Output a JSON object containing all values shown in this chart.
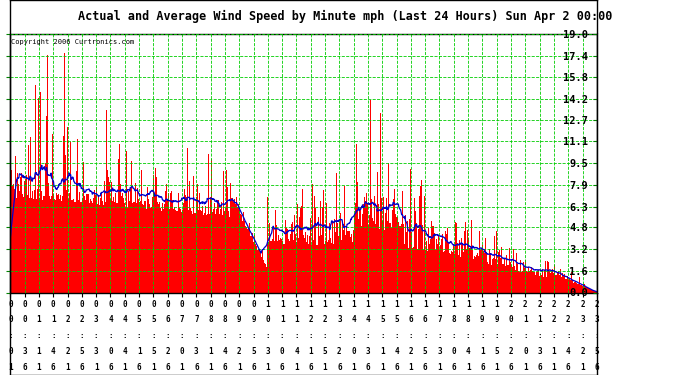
{
  "title": "Actual and Average Wind Speed by Minute mph (Last 24 Hours) Sun Apr 2 00:00",
  "copyright": "Copyright 2006 Curtronics.com",
  "yticks": [
    0.0,
    1.6,
    3.2,
    4.8,
    6.3,
    7.9,
    9.5,
    11.1,
    12.7,
    14.2,
    15.8,
    17.4,
    19.0
  ],
  "ymax": 19.0,
  "ymin": 0.0,
  "bar_color": "#ff0000",
  "line_color": "#0000cc",
  "grid_color": "#00cc00",
  "bg_color": "#ffffff",
  "title_bg": "#c8c8c8",
  "border_color": "#000000",
  "xtick_labels": [
    "00:01",
    "00:36",
    "01:11",
    "01:46",
    "02:21",
    "02:56",
    "03:31",
    "04:06",
    "04:41",
    "05:16",
    "05:51",
    "06:26",
    "07:01",
    "07:36",
    "08:11",
    "08:46",
    "09:21",
    "09:56",
    "10:31",
    "11:06",
    "11:41",
    "12:16",
    "12:51",
    "13:26",
    "14:01",
    "14:36",
    "15:11",
    "15:46",
    "16:21",
    "16:56",
    "17:31",
    "18:06",
    "18:41",
    "19:16",
    "19:51",
    "20:26",
    "21:01",
    "21:36",
    "22:11",
    "22:46",
    "23:21",
    "23:56"
  ],
  "figwidth": 6.9,
  "figheight": 3.75,
  "dpi": 100
}
